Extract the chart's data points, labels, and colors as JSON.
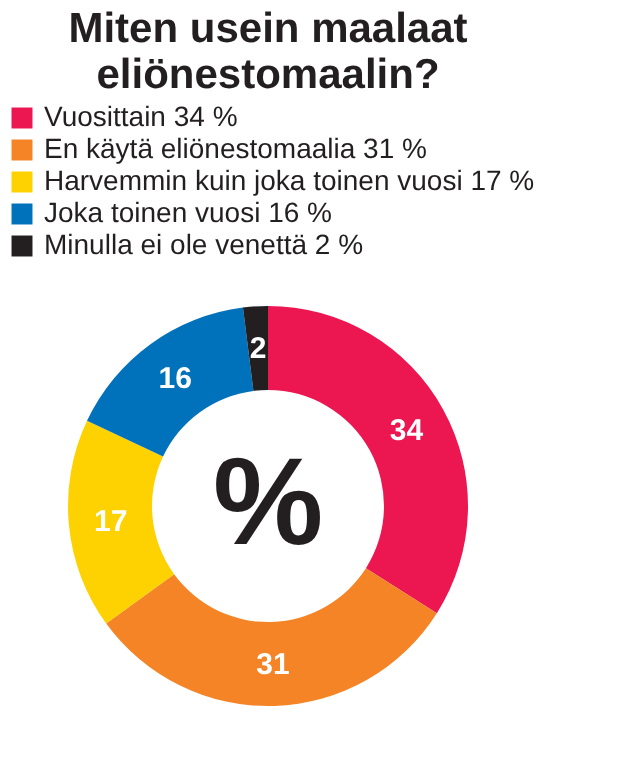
{
  "chart_data": {
    "type": "donut",
    "title": "Miten usein maalaat\neliönestomaalin?",
    "categories": [
      "Vuosittain 34 %",
      "En käytä eliönestomaalia 31 %",
      "Harvemmin kuin joka toinen vuosi 17 %",
      "Joka toinen vuosi 16 %",
      "Minulla ei ole venettä 2 %"
    ],
    "values": [
      34,
      31,
      17,
      16,
      2
    ],
    "colors": [
      "#ec1651",
      "#f58426",
      "#fdd200",
      "#0071bb",
      "#231f20"
    ],
    "data_labels": true,
    "legend": "top",
    "annotations": [
      "%"
    ]
  }
}
